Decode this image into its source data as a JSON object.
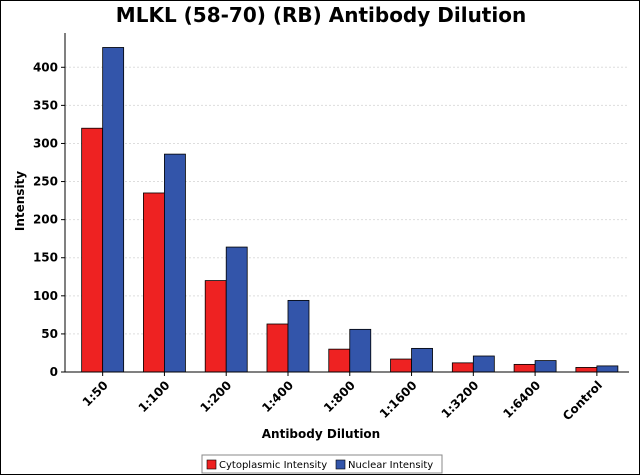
{
  "chart_data": {
    "type": "bar",
    "title": "MLKL (58-70) (RB) Antibody Dilution",
    "xlabel": "Antibody Dilution",
    "ylabel": "Intensity",
    "categories": [
      "1:50",
      "1:100",
      "1:200",
      "1:400",
      "1:800",
      "1:1600",
      "1:3200",
      "1:6400",
      "Control"
    ],
    "series": [
      {
        "name": "Cytoplasmic Intensity",
        "color": "#ee2222",
        "values": [
          320,
          235,
          120,
          63,
          30,
          17,
          12,
          10,
          6
        ]
      },
      {
        "name": "Nuclear Intensity",
        "color": "#3355aa",
        "values": [
          426,
          286,
          164,
          94,
          56,
          31,
          21,
          15,
          8
        ]
      }
    ],
    "yticks": [
      0,
      50,
      100,
      150,
      200,
      250,
      300,
      350,
      400
    ],
    "ylim": [
      0,
      445
    ],
    "grid": true,
    "legend_position": "bottom"
  }
}
